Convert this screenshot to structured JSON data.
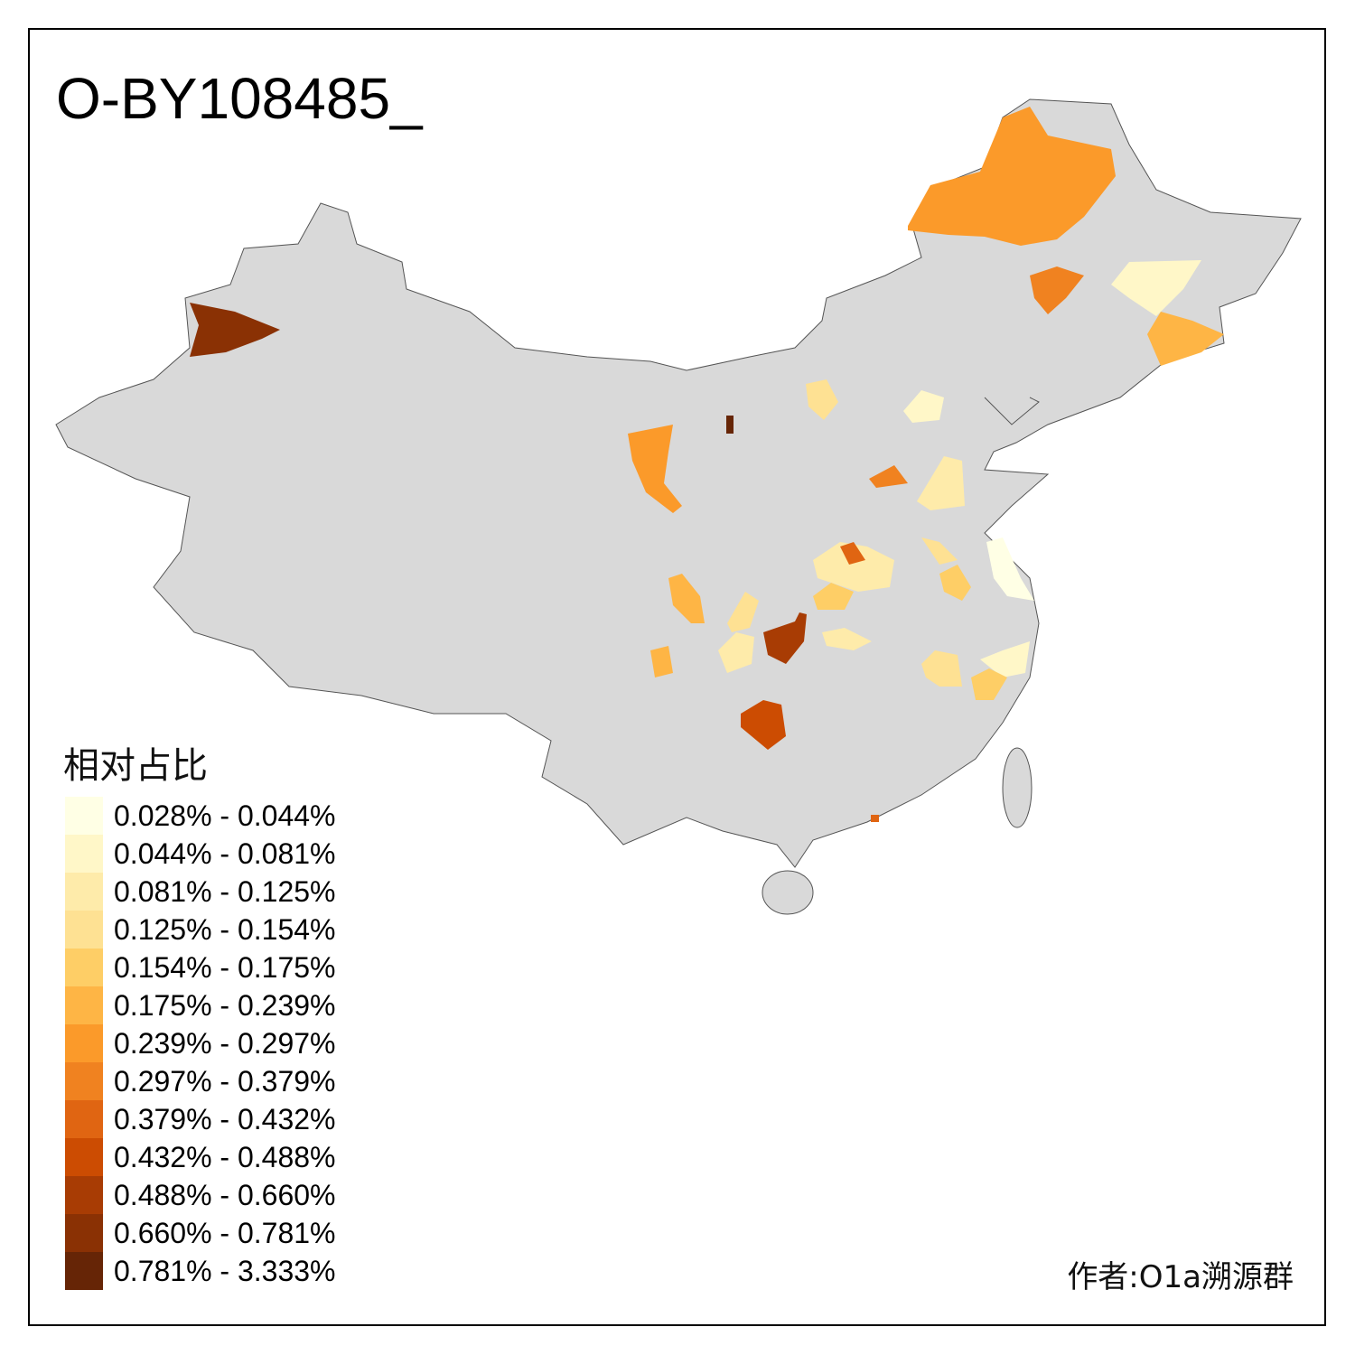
{
  "title": "O-BY108485_",
  "legend": {
    "title": "相对占比",
    "items": [
      {
        "label": "0.028% - 0.044%",
        "color": "#FFFFE5"
      },
      {
        "label": "0.044% - 0.081%",
        "color": "#FFF7C8"
      },
      {
        "label": "0.081% - 0.125%",
        "color": "#FEEBAA"
      },
      {
        "label": "0.125% - 0.154%",
        "color": "#FEE193"
      },
      {
        "label": "0.154% - 0.175%",
        "color": "#FECE66"
      },
      {
        "label": "0.175% - 0.239%",
        "color": "#FEB545"
      },
      {
        "label": "0.239% - 0.297%",
        "color": "#FB9A2A"
      },
      {
        "label": "0.297% - 0.379%",
        "color": "#F08220"
      },
      {
        "label": "0.379% - 0.432%",
        "color": "#E06512"
      },
      {
        "label": "0.432% - 0.488%",
        "color": "#CC4C02"
      },
      {
        "label": "0.488% - 0.660%",
        "color": "#A83C04"
      },
      {
        "label": "0.660% - 0.781%",
        "color": "#8A3104"
      },
      {
        "label": "0.781% - 3.333%",
        "color": "#662506"
      }
    ]
  },
  "base_color": "#D9D9D9",
  "author": "作者:O1a溯源群"
}
